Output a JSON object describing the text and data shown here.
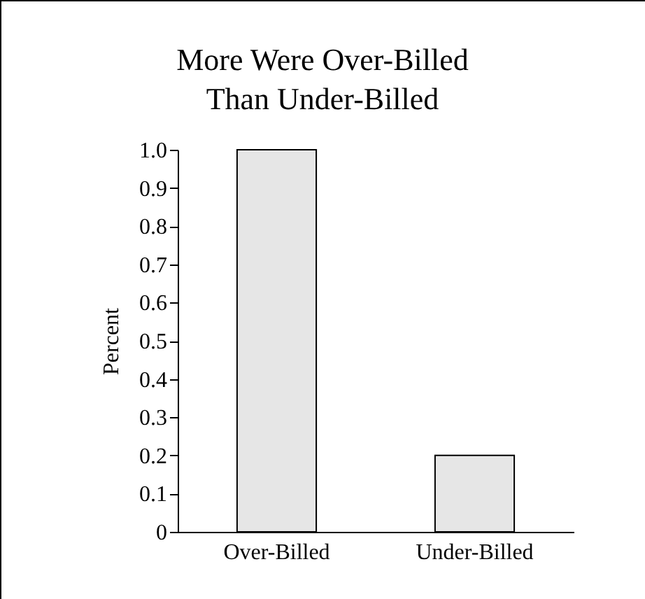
{
  "chart_data": {
    "type": "bar",
    "title": "More Were Over-Billed\nThan Under-Billed",
    "ylabel": "Percent",
    "categories": [
      "Over-Billed",
      "Under-Billed"
    ],
    "values": [
      1.0,
      0.2
    ],
    "color": "#e6e6e6",
    "ylim": [
      0,
      1.0
    ],
    "yticks": [
      0,
      {
        "value": 0.1,
        "label": "0.1"
      },
      {
        "value": 0.2,
        "label": "0.2"
      },
      {
        "value": 0.3,
        "label": "0.3"
      },
      {
        "value": 0.4,
        "label": "0.4"
      },
      {
        "value": 0.5,
        "label": "0.5"
      },
      {
        "value": 0.6,
        "label": "0.6"
      },
      {
        "value": 0.7,
        "label": "0.7"
      },
      {
        "value": 0.8,
        "label": "0.8"
      },
      {
        "value": 0.9,
        "label": "0.9"
      },
      {
        "value": 1,
        "label": "1.0"
      }
    ],
    "grid": false
  }
}
